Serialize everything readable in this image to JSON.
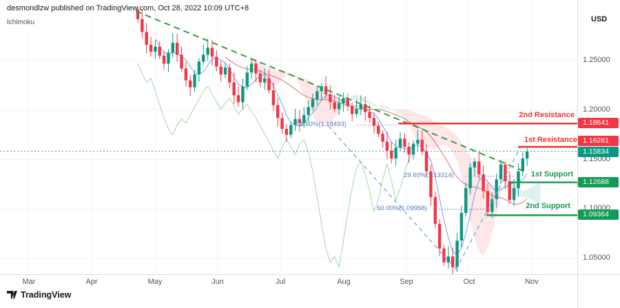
{
  "header": {
    "publisher": "desmondlzw published on TradingView.com, Oct 28, 2022 10:09 UTC+8",
    "indicator_label": "Ichimoku"
  },
  "footer": {
    "brand": "TradingView"
  },
  "chart_data": {
    "type": "candlestick",
    "y_axis": {
      "currency": "USD",
      "ticks": [
        {
          "label": "1.25000",
          "price": 1.25
        },
        {
          "label": "1.20000",
          "price": 1.2
        },
        {
          "label": "1.15000",
          "price": 1.15
        },
        {
          "label": "1.10000",
          "price": 1.1
        },
        {
          "label": "1.05000",
          "price": 1.05
        }
      ]
    },
    "x_axis": {
      "months": [
        "Mar",
        "Apr",
        "May",
        "Jun",
        "Jul",
        "Aug",
        "Sep",
        "Oct",
        "Nov"
      ]
    },
    "candles": {
      "first_open": 1.301,
      "closes": [
        1.292,
        1.279,
        1.266,
        1.259,
        1.264,
        1.255,
        1.247,
        1.258,
        1.268,
        1.256,
        1.242,
        1.23,
        1.223,
        1.236,
        1.249,
        1.256,
        1.263,
        1.254,
        1.244,
        1.236,
        1.243,
        1.228,
        1.215,
        1.208,
        1.224,
        1.238,
        1.247,
        1.237,
        1.228,
        1.232,
        1.22,
        1.205,
        1.192,
        1.181,
        1.175,
        1.185,
        1.191,
        1.187,
        1.195,
        1.203,
        1.211,
        1.219,
        1.224,
        1.216,
        1.208,
        1.201,
        1.207,
        1.212,
        1.204,
        1.196,
        1.201,
        1.206,
        1.198,
        1.192,
        1.184,
        1.176,
        1.168,
        1.159,
        1.151,
        1.162,
        1.171,
        1.163,
        1.155,
        1.166,
        1.17,
        1.158,
        1.138,
        1.112,
        1.085,
        1.06,
        1.046,
        1.052,
        1.041,
        1.068,
        1.096,
        1.121,
        1.142,
        1.148,
        1.135,
        1.118,
        1.097,
        1.11,
        1.13,
        1.145,
        1.128,
        1.109,
        1.121,
        1.138,
        1.151,
        1.158
      ]
    },
    "levels": {
      "resistance2": {
        "label": "2nd Resistance",
        "value": "1.18641",
        "price": 1.18641
      },
      "resistance1": {
        "label": "1st Resistance",
        "value": "1.16281",
        "price": 1.16281
      },
      "current_price": {
        "value": "1.15834",
        "price": 1.15834
      },
      "support1": {
        "label": "1st Support",
        "value": "1.12688",
        "price": 1.12688
      },
      "support2": {
        "label": "2nd Support",
        "value": "1.09364",
        "price": 1.09364
      }
    },
    "fib_levels": [
      {
        "label": "78.60%(1.18493)",
        "price": 1.18493
      },
      {
        "label": "29.60%(1.13314)",
        "price": 1.13314
      },
      {
        "label": "50.00%(1.09958)",
        "price": 1.09958
      }
    ],
    "colors": {
      "up": "#089981",
      "down": "#f23645",
      "cloud_up": "rgba(8,153,129,0.13)",
      "cloud_down": "rgba(242,54,69,0.12)",
      "tenkan": "#2962ff",
      "kijun": "#c62828",
      "chikou": "#4caf50",
      "tag_red": "#f23645",
      "tag_green": "#139a55",
      "tag_green_current": "#089981",
      "line_red": "#ec3431",
      "line_green": "#169a52",
      "fib_blue": "#5679c1",
      "dashed_blue": "#6ba3e8",
      "trend_green": "#2f9e44",
      "current_line": "#52a07a",
      "grid": "#f2f4f8",
      "axis_text": "#50535e"
    }
  }
}
